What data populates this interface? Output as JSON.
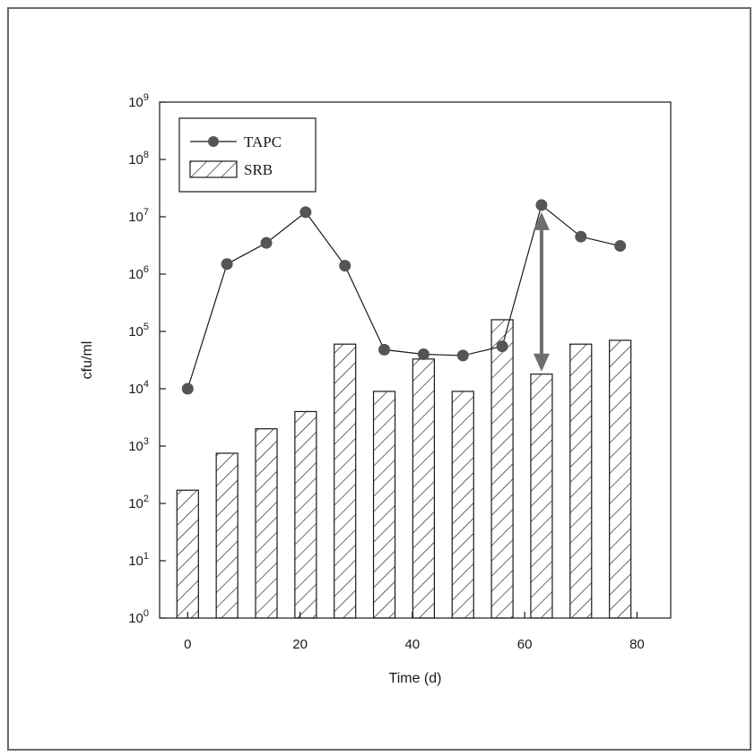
{
  "chart_data": {
    "type": "bar",
    "xlabel": "Time (d)",
    "ylabel": "cfu/ml",
    "xlim": [
      -5,
      86
    ],
    "ylim_log10": [
      0,
      9
    ],
    "y_scale": "log",
    "x_ticks": [
      0,
      20,
      40,
      60,
      80
    ],
    "x_tick_labels": [
      "0",
      "20",
      "40",
      "60",
      "80"
    ],
    "y_tick_exponents": [
      0,
      1,
      2,
      3,
      4,
      5,
      6,
      7,
      8,
      9
    ],
    "legend_position": "top-left",
    "grid": false,
    "series": [
      {
        "name": "TAPC",
        "kind": "line-marker",
        "color": "#555555",
        "x": [
          0,
          7,
          14,
          21,
          28,
          35,
          42,
          49,
          56,
          63,
          70,
          77
        ],
        "values": [
          10000,
          1500000,
          3500000,
          12000000,
          1400000,
          48000,
          40000,
          38000,
          55000,
          16000000,
          4500000,
          3100000
        ]
      },
      {
        "name": "SRB",
        "kind": "hatched-bar",
        "color": "#1a1a1a",
        "x": [
          0,
          7,
          14,
          21,
          28,
          35,
          42,
          49,
          56,
          63,
          70,
          77
        ],
        "values": [
          170,
          750,
          2000,
          4000,
          60000,
          9000,
          33000,
          9000,
          160000,
          18000,
          60000,
          70000
        ]
      }
    ],
    "annotations": [
      {
        "type": "double-arrow",
        "x": 63,
        "y_from": 20000,
        "y_to": 12000000,
        "color": "#6e6e6e"
      }
    ]
  }
}
